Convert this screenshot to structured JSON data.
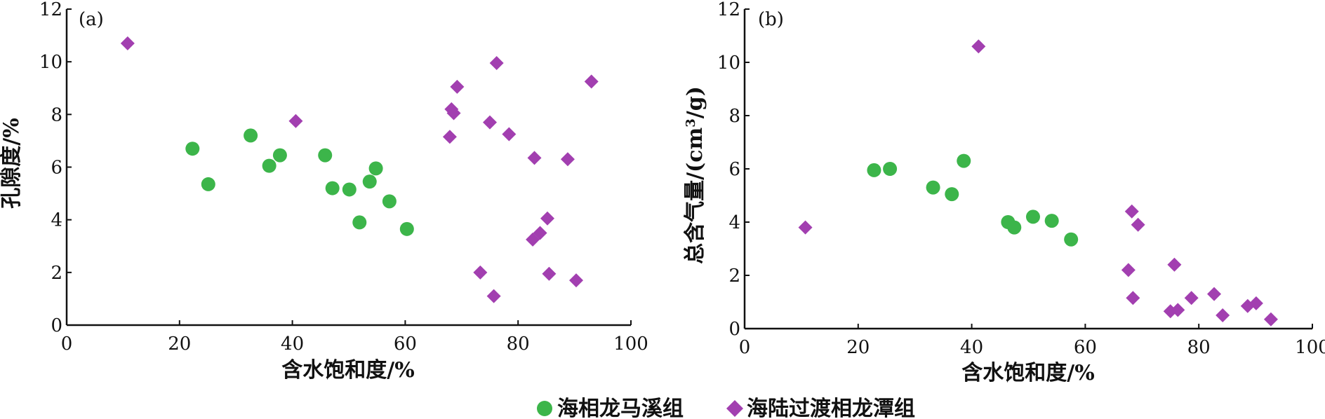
{
  "colors": {
    "marine": "#3cb54a",
    "transitional": "#a23fb0",
    "axis": "#111111"
  },
  "legend": {
    "items": [
      {
        "label": "海相龙马溪组",
        "marker": "circle"
      },
      {
        "label": "海陆过渡相龙潭组",
        "marker": "diamond"
      }
    ]
  },
  "chart_data": [
    {
      "type": "scatter",
      "panel_label": "(a)",
      "xlabel": "含水饱和度/%",
      "ylabel": "孔隙度/%",
      "xlim": [
        0,
        100
      ],
      "ylim": [
        0,
        12
      ],
      "xticks": [
        0,
        20,
        40,
        60,
        80,
        100
      ],
      "yticks": [
        0,
        2,
        4,
        6,
        8,
        10,
        12
      ],
      "grid": false,
      "series": [
        {
          "name": "海相龙马溪组",
          "marker": "circle",
          "points": [
            [
              22.3,
              6.7
            ],
            [
              25.1,
              5.35
            ],
            [
              32.6,
              7.2
            ],
            [
              35.9,
              6.05
            ],
            [
              37.8,
              6.45
            ],
            [
              45.8,
              6.45
            ],
            [
              47.1,
              5.2
            ],
            [
              50.1,
              5.15
            ],
            [
              51.9,
              3.9
            ],
            [
              53.7,
              5.45
            ],
            [
              54.8,
              5.95
            ],
            [
              57.2,
              4.7
            ],
            [
              60.3,
              3.65
            ]
          ]
        },
        {
          "name": "海陆过渡相龙潭组",
          "marker": "diamond",
          "points": [
            [
              10.8,
              10.7
            ],
            [
              40.6,
              7.75
            ],
            [
              67.9,
              7.15
            ],
            [
              68.2,
              8.2
            ],
            [
              68.6,
              8.05
            ],
            [
              69.2,
              9.05
            ],
            [
              73.3,
              2.0
            ],
            [
              75.0,
              7.7
            ],
            [
              75.7,
              1.1
            ],
            [
              76.2,
              9.95
            ],
            [
              78.4,
              7.25
            ],
            [
              82.6,
              3.25
            ],
            [
              82.9,
              6.35
            ],
            [
              83.9,
              3.5
            ],
            [
              85.2,
              4.05
            ],
            [
              85.5,
              1.95
            ],
            [
              88.8,
              6.3
            ],
            [
              90.3,
              1.7
            ],
            [
              93.0,
              9.25
            ]
          ]
        }
      ]
    },
    {
      "type": "scatter",
      "panel_label": "(b)",
      "xlabel": "含水饱和度/%",
      "ylabel_prefix": "总含气量/(cm",
      "ylabel_sup": "3",
      "ylabel_suffix": "/g)",
      "xlim": [
        0,
        100
      ],
      "ylim": [
        0,
        12
      ],
      "xticks": [
        0,
        20,
        40,
        60,
        80,
        100
      ],
      "yticks": [
        0,
        2,
        4,
        6,
        8,
        10,
        12
      ],
      "grid": false,
      "series": [
        {
          "name": "海相龙马溪组",
          "marker": "circle",
          "points": [
            [
              22.8,
              5.95
            ],
            [
              25.6,
              6.0
            ],
            [
              33.2,
              5.3
            ],
            [
              36.5,
              5.05
            ],
            [
              38.6,
              6.3
            ],
            [
              46.4,
              4.0
            ],
            [
              47.5,
              3.8
            ],
            [
              50.8,
              4.2
            ],
            [
              54.1,
              4.05
            ],
            [
              57.5,
              3.35
            ]
          ]
        },
        {
          "name": "海陆过渡相龙潭组",
          "marker": "diamond",
          "points": [
            [
              10.7,
              3.8
            ],
            [
              41.2,
              10.6
            ],
            [
              67.6,
              2.2
            ],
            [
              68.2,
              4.4
            ],
            [
              68.4,
              1.15
            ],
            [
              69.3,
              3.9
            ],
            [
              75.0,
              0.65
            ],
            [
              75.7,
              2.4
            ],
            [
              76.3,
              0.7
            ],
            [
              78.7,
              1.15
            ],
            [
              82.7,
              1.3
            ],
            [
              84.2,
              0.5
            ],
            [
              88.6,
              0.85
            ],
            [
              90.1,
              0.95
            ],
            [
              92.7,
              0.35
            ]
          ]
        }
      ]
    }
  ]
}
